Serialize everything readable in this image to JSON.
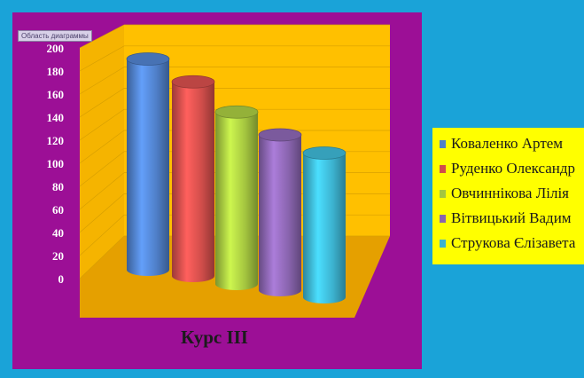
{
  "chart_area_tooltip": "Область диаграммы",
  "chart_data": {
    "type": "bar",
    "style": "3d-cylinder",
    "title": "Курс ІІІ",
    "categories": [
      "Коваленко Артем",
      "Руденко Олександр",
      "Овчиннікова Лілія",
      "Вітвицький Вадим",
      "Струкова Єлізавета"
    ],
    "values": [
      190,
      175,
      155,
      140,
      130
    ],
    "colors": [
      "#4f7fc8",
      "#d04d4a",
      "#a4c53f",
      "#8964ae",
      "#3cb2cf"
    ],
    "legend_labels": [
      "Коваленко Артем",
      "Руденко Олександр",
      "Овчиннікова Лілія",
      "Вітвицький Вадим",
      "Струкова Єлізавета"
    ],
    "y_ticks": [
      "0",
      "20",
      "40",
      "60",
      "80",
      "100",
      "120",
      "140",
      "160",
      "180",
      "200"
    ],
    "ylim": [
      0,
      200
    ],
    "grid": true,
    "legend_position": "right",
    "background_colors": {
      "outer": "#1aa3d8",
      "plot_area": "#9c0f96",
      "walls": "#ffc000",
      "floor": "#e5a000",
      "legend": "#ffff00"
    }
  }
}
